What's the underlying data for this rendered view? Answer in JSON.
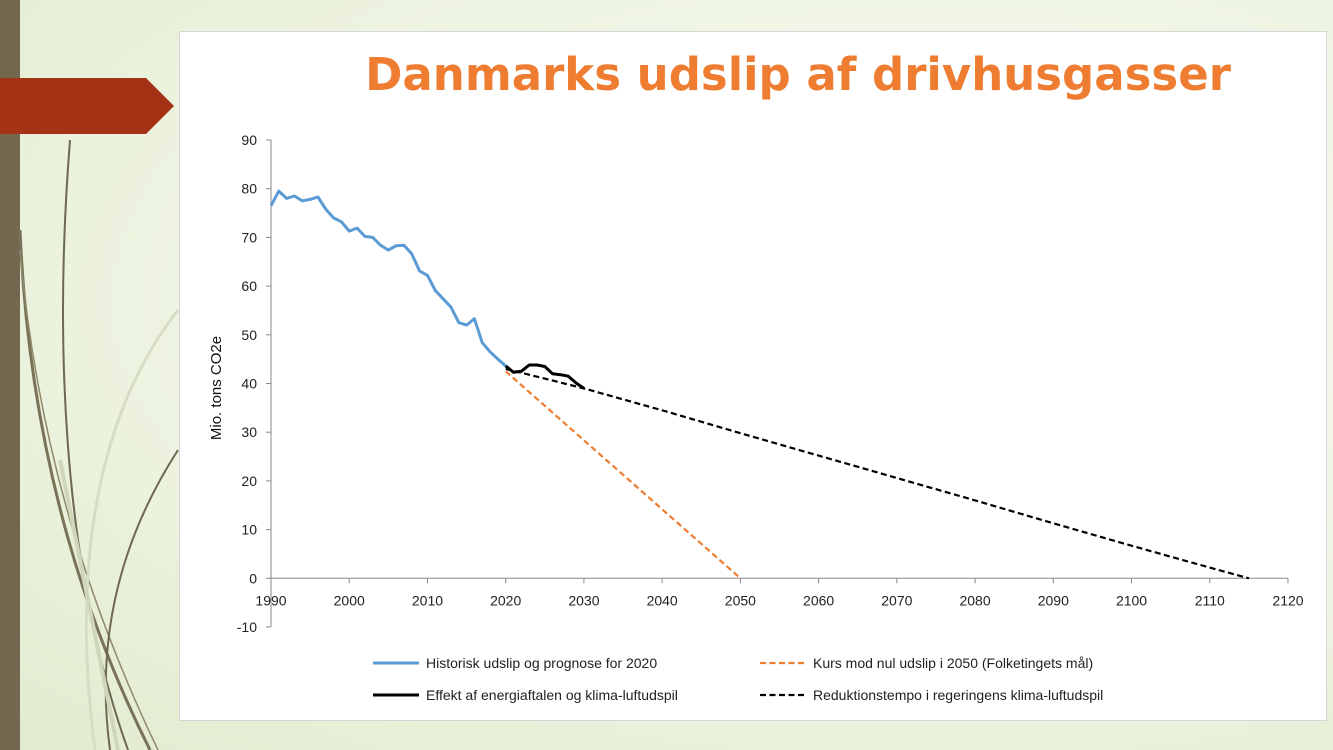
{
  "chart_data": {
    "type": "line",
    "title": "Danmarks udslip af drivhusgasser",
    "xlabel": "",
    "ylabel": "Mio. tons CO2e",
    "xlim": [
      1990,
      2120
    ],
    "ylim": [
      -10,
      90
    ],
    "x_ticks": [
      1990,
      2000,
      2010,
      2020,
      2030,
      2040,
      2050,
      2060,
      2070,
      2080,
      2090,
      2100,
      2110,
      2120
    ],
    "y_ticks": [
      90,
      80,
      70,
      60,
      50,
      40,
      30,
      20,
      10,
      0,
      -10
    ],
    "grid": false,
    "legend_position": "bottom",
    "series": [
      {
        "name": "Historisk udslip og prognose for 2020",
        "color": "#5b9bd5",
        "dash": "solid",
        "x": [
          1990,
          1991,
          1992,
          1993,
          1994,
          1995,
          1996,
          1997,
          1998,
          1999,
          2000,
          2001,
          2002,
          2003,
          2004,
          2005,
          2006,
          2007,
          2008,
          2009,
          2010,
          2011,
          2012,
          2013,
          2014,
          2015,
          2016,
          2017,
          2018,
          2019,
          2020
        ],
        "y": [
          76.5,
          79.5,
          78.0,
          78.5,
          77.5,
          77.8,
          78.3,
          75.8,
          74.0,
          73.2,
          71.3,
          71.9,
          70.2,
          70.0,
          68.4,
          67.4,
          68.3,
          68.4,
          66.6,
          63.1,
          62.2,
          59.1,
          57.4,
          55.7,
          52.5,
          52.0,
          53.3,
          48.4,
          46.5,
          45.0,
          43.6
        ]
      },
      {
        "name": "Kurs mod nul udslip i 2050 (Folketingets mål)",
        "color": "#ee7d31",
        "dash": "dashed",
        "x": [
          2020,
          2050
        ],
        "y": [
          42.5,
          0
        ]
      },
      {
        "name": "Effekt af energiaftalen og klima-luftudspil",
        "color": "#000000",
        "dash": "solid",
        "x": [
          2020,
          2021,
          2022,
          2023,
          2024,
          2025,
          2026,
          2027,
          2028,
          2029,
          2030
        ],
        "y": [
          43.6,
          42.3,
          42.5,
          43.8,
          43.8,
          43.5,
          42.0,
          41.8,
          41.5,
          40.1,
          39.0
        ]
      },
      {
        "name": "Reduktionstempo i regeringens klima-luftudspil",
        "color": "#000000",
        "dash": "dashed",
        "x": [
          2020,
          2025,
          2030,
          2040,
          2050,
          2060,
          2070,
          2080,
          2090,
          2100,
          2110,
          2115
        ],
        "y": [
          43.0,
          41.0,
          39.0,
          34.5,
          29.8,
          25.2,
          20.6,
          16.0,
          11.3,
          6.7,
          2.2,
          0
        ]
      }
    ]
  }
}
